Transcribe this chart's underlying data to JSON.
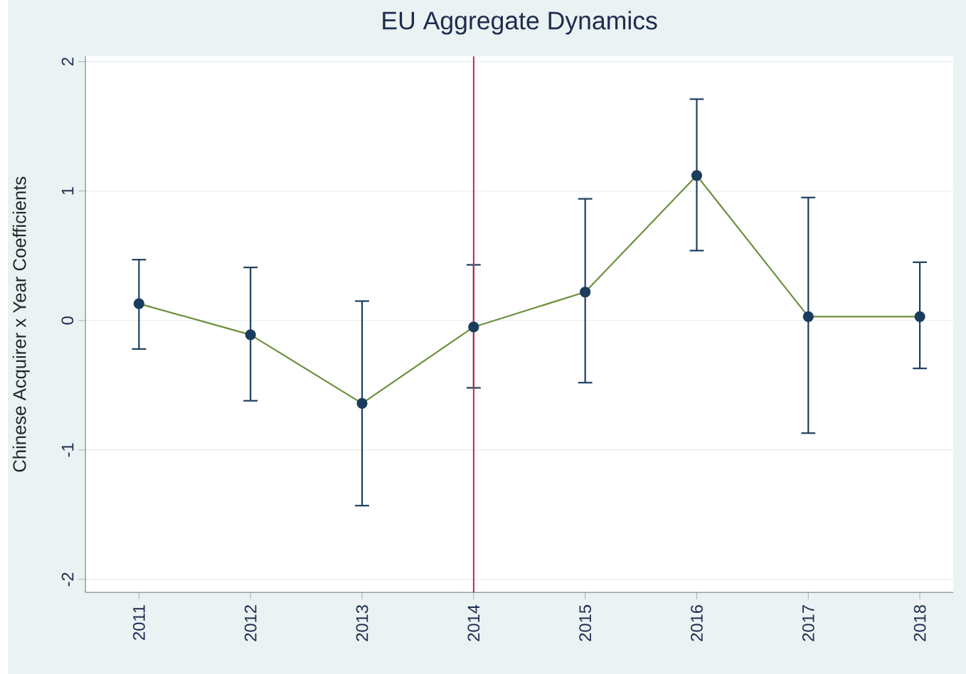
{
  "chart_data": {
    "type": "line",
    "title": "EU Aggregate Dynamics",
    "ylabel": "Chinese Acquirer x Year Coefficients",
    "x": [
      2011,
      2012,
      2013,
      2014,
      2015,
      2016,
      2017,
      2018
    ],
    "series": [
      {
        "type": "line",
        "color": "#6b8f3c",
        "marker": "none",
        "line_style": "solid",
        "values": [
          0.13,
          -0.11,
          -0.64,
          -0.05,
          0.22,
          1.12,
          0.03,
          0.03
        ]
      },
      {
        "type": "scatter",
        "color": "#1a3d5e",
        "marker": "circle",
        "values": [
          0.13,
          -0.11,
          -0.64,
          -0.05,
          0.22,
          1.12,
          0.03,
          0.03
        ],
        "errors": [
          [
            -0.22,
            0.47
          ],
          [
            -0.62,
            0.41
          ],
          [
            -1.43,
            0.15
          ],
          [
            -0.52,
            0.43
          ],
          [
            -0.48,
            0.94
          ],
          [
            0.54,
            1.71
          ],
          [
            -0.87,
            0.95
          ],
          [
            -0.37,
            0.45
          ]
        ]
      }
    ],
    "xlim": [
      2010.52,
      2018.3
    ],
    "xticks": [
      2011,
      2012,
      2013,
      2014,
      2015,
      2016,
      2017,
      2018
    ],
    "ylim": [
      -2.1,
      2.04
    ],
    "yticks": [
      -2,
      -1,
      0,
      1,
      2
    ],
    "grid": "y",
    "ref_lines": [
      {
        "axis": "x",
        "value": 2014,
        "color": "#d6204f"
      }
    ]
  }
}
